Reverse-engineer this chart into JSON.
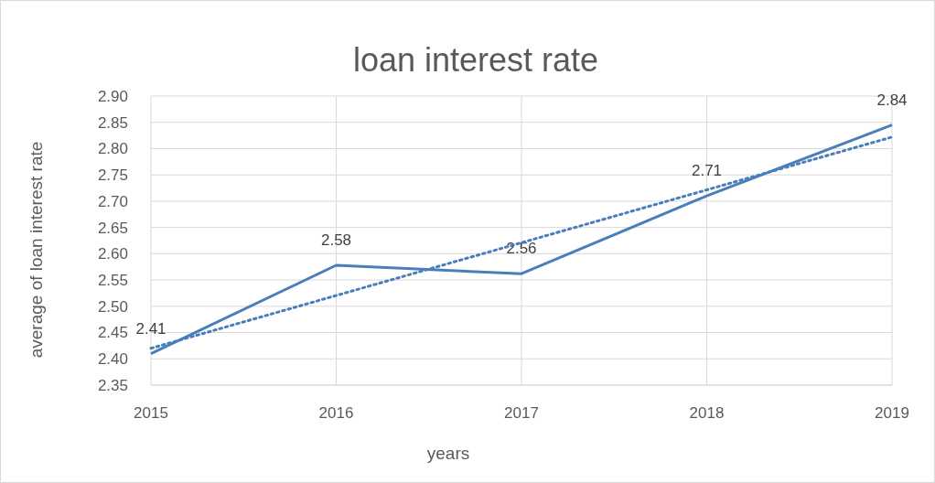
{
  "chart_data": {
    "type": "line",
    "title": "loan interest rate",
    "xlabel": "years",
    "ylabel": "average of loan interest rate",
    "x": [
      2015,
      2016,
      2017,
      2018,
      2019
    ],
    "xlim": [
      2015,
      2019
    ],
    "xticks": [
      2015,
      2016,
      2017,
      2018,
      2019
    ],
    "ylim": [
      2.35,
      2.9
    ],
    "yticks": [
      {
        "value": 2.35,
        "label": "2.35"
      },
      {
        "value": 2.4,
        "label": "2.40"
      },
      {
        "value": 2.45,
        "label": "2.45"
      },
      {
        "value": 2.5,
        "label": "2.50"
      },
      {
        "value": 2.55,
        "label": "2.55"
      },
      {
        "value": 2.6,
        "label": "2.60"
      },
      {
        "value": 2.65,
        "label": "2.65"
      },
      {
        "value": 2.7,
        "label": "2.70"
      },
      {
        "value": 2.75,
        "label": "2.75"
      },
      {
        "value": 2.8,
        "label": "2.80"
      },
      {
        "value": 2.85,
        "label": "2.85"
      },
      {
        "value": 2.9,
        "label": "2.90"
      }
    ],
    "grid": true,
    "series": [
      {
        "type": "line",
        "color": "#4a7ebb",
        "values": [
          2.41,
          2.578,
          2.562,
          2.71,
          2.845
        ],
        "value_labels": [
          "2.41",
          "2.58",
          "2.56",
          "2.71",
          "2.84"
        ],
        "line_style": "solid"
      },
      {
        "type": "line",
        "color": "#4a7ebb",
        "x": [
          2015,
          2019
        ],
        "values": [
          2.42,
          2.822
        ],
        "line_style": "dotted"
      }
    ]
  }
}
